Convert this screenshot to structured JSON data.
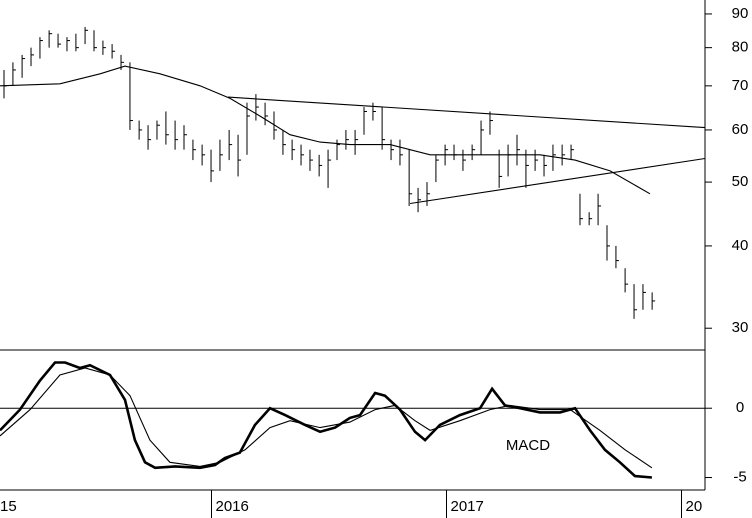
{
  "chart_data": [
    {
      "type": "hlc",
      "log_scale": true,
      "ylim": [
        27.8,
        94.5
      ],
      "yticks": [
        30,
        40,
        50,
        60,
        70,
        80,
        90
      ],
      "xlim": [
        2015.1,
        2018.1
      ],
      "color": "#000000",
      "x": [
        2015.117,
        2015.155,
        2015.194,
        2015.232,
        2015.27,
        2015.309,
        2015.347,
        2015.385,
        2015.423,
        2015.462,
        2015.5,
        2015.538,
        2015.577,
        2015.615,
        2015.653,
        2015.692,
        2015.73,
        2015.768,
        2015.806,
        2015.845,
        2015.883,
        2015.921,
        2015.96,
        2015.998,
        2016.036,
        2016.075,
        2016.113,
        2016.151,
        2016.189,
        2016.228,
        2016.266,
        2016.304,
        2016.343,
        2016.381,
        2016.419,
        2016.458,
        2016.496,
        2016.534,
        2016.572,
        2016.611,
        2016.649,
        2016.687,
        2016.726,
        2016.764,
        2016.802,
        2016.841,
        2016.879,
        2016.917,
        2016.955,
        2016.994,
        2017.032,
        2017.07,
        2017.109,
        2017.147,
        2017.185,
        2017.224,
        2017.262,
        2017.3,
        2017.338,
        2017.377,
        2017.415,
        2017.453,
        2017.492,
        2017.53,
        2017.568,
        2017.607,
        2017.645,
        2017.683,
        2017.721,
        2017.76,
        2017.798,
        2017.836,
        2017.875
      ],
      "high": [
        74,
        76,
        78,
        80,
        83,
        85,
        84,
        83,
        84,
        86,
        85,
        82,
        81,
        78,
        76,
        62,
        61,
        62,
        64,
        62,
        61,
        58,
        57,
        56,
        58,
        60,
        59,
        66,
        68,
        66,
        64,
        60,
        58,
        57,
        56,
        55,
        56,
        58,
        60,
        60,
        65,
        66,
        65,
        58,
        58,
        56,
        49,
        50,
        55,
        57,
        57,
        56,
        57,
        62,
        64,
        56,
        57,
        59,
        56,
        56,
        55,
        57,
        57,
        57,
        48,
        45,
        48,
        43,
        40,
        37,
        35,
        35,
        34
      ],
      "low": [
        67,
        70,
        72,
        75,
        77,
        80,
        80,
        79,
        79,
        81,
        79,
        78,
        77,
        74,
        60,
        58,
        56,
        58,
        57,
        56,
        56,
        54,
        53,
        50,
        52,
        54,
        51,
        55,
        62,
        61,
        58,
        55,
        54,
        53,
        52,
        51,
        49,
        54,
        56,
        55,
        59,
        62,
        56,
        54,
        53,
        46,
        45,
        46,
        50,
        53,
        54,
        52,
        54,
        55,
        59,
        49,
        51,
        53,
        49,
        52,
        51,
        52,
        53,
        54,
        43,
        43,
        43,
        38,
        37,
        34,
        31,
        32,
        32
      ],
      "close": [
        70,
        74,
        77,
        78,
        82,
        84,
        81,
        82,
        80,
        85,
        80,
        80,
        79,
        76,
        62,
        60,
        58,
        61,
        59,
        58,
        59,
        56,
        55,
        52,
        55,
        57,
        54,
        63,
        65,
        63,
        60,
        57,
        56,
        55,
        54,
        53,
        54,
        57,
        58,
        58,
        64,
        64,
        58,
        56,
        55,
        48,
        47,
        48,
        54,
        56,
        55,
        54,
        56,
        60,
        62,
        51,
        55,
        56,
        53,
        54,
        53,
        55,
        55,
        56,
        44,
        44,
        46,
        40,
        38,
        35,
        32,
        34,
        33
      ],
      "series": [
        {
          "color": "#000000",
          "x": [
            2015.1,
            2015.355,
            2015.526,
            2015.632,
            2015.781,
            2015.951,
            2016.079,
            2016.206,
            2016.334,
            2016.462,
            2016.589,
            2016.76,
            2016.93,
            2017.1,
            2017.228,
            2017.398,
            2017.547,
            2017.696,
            2017.866
          ],
          "values": [
            70,
            70.5,
            73,
            75,
            73,
            70,
            67,
            63,
            59,
            57.5,
            57,
            57,
            55,
            55,
            55,
            55,
            54,
            52,
            48
          ]
        },
        {
          "color": "#000000",
          "x": [
            2016.07,
            2018.1
          ],
          "values": [
            67.3,
            60.5
          ]
        },
        {
          "color": "#000000",
          "x": [
            2016.845,
            2018.1
          ],
          "values": [
            46.4,
            54.3
          ]
        }
      ]
    },
    {
      "type": "line",
      "annotation": "MACD",
      "ylim": [
        -5.9,
        4.2
      ],
      "yticks": [
        0,
        -5
      ],
      "xlim": [
        2015.1,
        2018.1
      ],
      "xticks": [
        {
          "value": 2015,
          "label": "15"
        },
        2016,
        2017,
        {
          "value": 2018,
          "label": "20"
        }
      ],
      "series": [
        {
          "color": "#000000",
          "x": [
            2015.1,
            2015.185,
            2015.27,
            2015.334,
            2015.377,
            2015.44,
            2015.483,
            2015.568,
            2015.632,
            2015.674,
            2015.717,
            2015.76,
            2015.845,
            2015.951,
            2016.015,
            2016.057,
            2016.121,
            2016.185,
            2016.249,
            2016.313,
            2016.398,
            2016.462,
            2016.526,
            2016.589,
            2016.632,
            2016.696,
            2016.738,
            2016.802,
            2016.866,
            2016.909,
            2016.972,
            2017.057,
            2017.143,
            2017.194,
            2017.249,
            2017.313,
            2017.398,
            2017.483,
            2017.547,
            2017.611,
            2017.674,
            2017.738,
            2017.802,
            2017.874
          ],
          "values": [
            -1.6,
            -0.1,
            2.0,
            3.3,
            3.3,
            2.9,
            3.1,
            2.4,
            0.6,
            -2.3,
            -3.9,
            -4.3,
            -4.2,
            -4.3,
            -4.1,
            -3.6,
            -3.2,
            -1.2,
            0,
            -0.5,
            -1.2,
            -1.7,
            -1.4,
            -0.7,
            -0.5,
            1.1,
            0.9,
            -0.1,
            -1.7,
            -2.3,
            -1.2,
            -0.5,
            0,
            1.4,
            0.2,
            0,
            -0.3,
            -0.3,
            0,
            -1.6,
            -3.0,
            -3.9,
            -4.9,
            -5.0
          ]
        },
        {
          "color": "#000000",
          "x": [
            2015.1,
            2015.228,
            2015.355,
            2015.462,
            2015.568,
            2015.653,
            2015.738,
            2015.823,
            2015.951,
            2016.036,
            2016.143,
            2016.249,
            2016.334,
            2016.462,
            2016.589,
            2016.696,
            2016.781,
            2016.866,
            2016.93,
            2017.057,
            2017.185,
            2017.27,
            2017.398,
            2017.526,
            2017.653,
            2017.76,
            2017.874
          ],
          "values": [
            -2.0,
            -0.1,
            2.4,
            2.9,
            2.4,
            0.9,
            -2.3,
            -3.9,
            -4.2,
            -3.9,
            -3.0,
            -1.4,
            -0.9,
            -1.4,
            -1.0,
            -0.1,
            0.2,
            -0.9,
            -1.6,
            -0.9,
            -0.1,
            0.2,
            -0.1,
            -0.1,
            -1.6,
            -3.0,
            -4.3
          ]
        }
      ]
    }
  ]
}
